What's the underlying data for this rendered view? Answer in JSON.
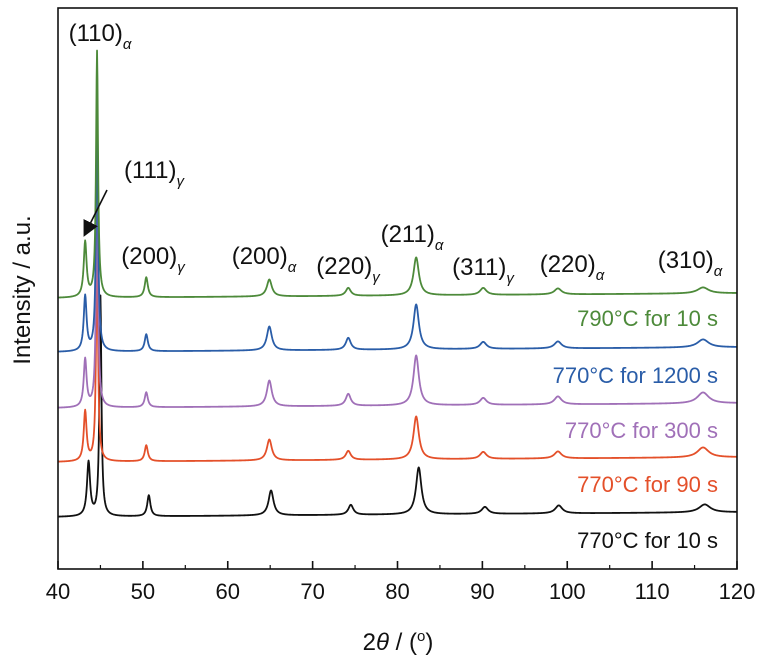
{
  "chart_data": {
    "type": "line",
    "title": "",
    "xlabel": {
      "prefix": "2",
      "symbol": "θ",
      "suffix": " / (",
      "unit": "o",
      "close": ")"
    },
    "ylabel": "Intensity / a.u.",
    "xlim": [
      40,
      120
    ],
    "xticks": [
      40,
      50,
      60,
      70,
      80,
      90,
      100,
      110,
      120
    ],
    "yticks": "none",
    "grid": false,
    "legend": "inline labels at right",
    "peak_labels": [
      {
        "name": "peak-110-alpha",
        "text": "(110)",
        "sub": "α",
        "x": 45.5
      },
      {
        "name": "peak-111-gamma",
        "text": "(111)",
        "sub": "γ",
        "x": 49.5
      },
      {
        "name": "peak-200-gamma",
        "text": "(200)",
        "sub": "γ",
        "x": 51.2
      },
      {
        "name": "peak-200-alpha",
        "text": "(200)",
        "sub": "α",
        "x": 65.2
      },
      {
        "name": "peak-220-gamma",
        "text": "(220)",
        "sub": "γ",
        "x": 74.7
      },
      {
        "name": "peak-211-alpha",
        "text": "(211)",
        "sub": "α",
        "x": 82.8
      },
      {
        "name": "peak-311-gamma",
        "text": "(311)",
        "sub": "γ",
        "x": 90.5
      },
      {
        "name": "peak-220-alpha",
        "text": "(220)",
        "sub": "α",
        "x": 99.2
      },
      {
        "name": "peak-310-alpha",
        "text": "(310)",
        "sub": "α",
        "x": 116.0
      }
    ],
    "series": [
      {
        "name": "770°C for 10 s",
        "color": "#111111",
        "offset": 0,
        "peaks": [
          {
            "x": 43.6,
            "h": 54,
            "w": 0.22
          },
          {
            "x": 45.0,
            "h": 220,
            "w": 0.14
          },
          {
            "x": 50.7,
            "h": 21,
            "w": 0.22
          },
          {
            "x": 65.1,
            "h": 25,
            "w": 0.35
          },
          {
            "x": 74.5,
            "h": 10,
            "w": 0.35
          },
          {
            "x": 82.5,
            "h": 47,
            "w": 0.38
          },
          {
            "x": 90.3,
            "h": 7,
            "w": 0.45
          },
          {
            "x": 99.0,
            "h": 8,
            "w": 0.5
          },
          {
            "x": 116.2,
            "h": 8,
            "w": 0.8
          }
        ]
      },
      {
        "name": "770°C for 90 s",
        "color": "#e4502a",
        "offset": 1,
        "peaks": [
          {
            "x": 43.2,
            "h": 50,
            "w": 0.2
          },
          {
            "x": 44.6,
            "h": 210,
            "w": 0.14
          },
          {
            "x": 50.4,
            "h": 16,
            "w": 0.22
          },
          {
            "x": 64.9,
            "h": 21,
            "w": 0.35
          },
          {
            "x": 74.2,
            "h": 9,
            "w": 0.35
          },
          {
            "x": 82.2,
            "h": 43,
            "w": 0.38
          },
          {
            "x": 90.1,
            "h": 7,
            "w": 0.45
          },
          {
            "x": 98.9,
            "h": 7,
            "w": 0.5
          },
          {
            "x": 116.0,
            "h": 10,
            "w": 0.8
          }
        ]
      },
      {
        "name": "770°C for 300 s",
        "color": "#a070b8",
        "offset": 2,
        "peaks": [
          {
            "x": 43.2,
            "h": 48,
            "w": 0.2
          },
          {
            "x": 44.6,
            "h": 230,
            "w": 0.14
          },
          {
            "x": 50.4,
            "h": 15,
            "w": 0.22
          },
          {
            "x": 64.9,
            "h": 26,
            "w": 0.35
          },
          {
            "x": 74.2,
            "h": 12,
            "w": 0.35
          },
          {
            "x": 82.2,
            "h": 50,
            "w": 0.38
          },
          {
            "x": 90.1,
            "h": 7,
            "w": 0.45
          },
          {
            "x": 98.9,
            "h": 8,
            "w": 0.5
          },
          {
            "x": 116.0,
            "h": 11,
            "w": 0.8
          }
        ]
      },
      {
        "name": "770°C for 1200 s",
        "color": "#2a5da8",
        "offset": 3,
        "peaks": [
          {
            "x": 43.2,
            "h": 55,
            "w": 0.2
          },
          {
            "x": 44.6,
            "h": 240,
            "w": 0.14
          },
          {
            "x": 50.4,
            "h": 17,
            "w": 0.22
          },
          {
            "x": 64.9,
            "h": 24,
            "w": 0.35
          },
          {
            "x": 74.2,
            "h": 12,
            "w": 0.35
          },
          {
            "x": 82.2,
            "h": 45,
            "w": 0.38
          },
          {
            "x": 90.1,
            "h": 7,
            "w": 0.45
          },
          {
            "x": 98.9,
            "h": 7,
            "w": 0.5
          },
          {
            "x": 116.0,
            "h": 8,
            "w": 0.8
          }
        ]
      },
      {
        "name": "790°C for 10 s",
        "color": "#4d8a3a",
        "offset": 4,
        "peaks": [
          {
            "x": 43.2,
            "h": 55,
            "w": 0.2
          },
          {
            "x": 44.6,
            "h": 246,
            "w": 0.14
          },
          {
            "x": 50.4,
            "h": 20,
            "w": 0.22
          },
          {
            "x": 64.9,
            "h": 17,
            "w": 0.35
          },
          {
            "x": 74.2,
            "h": 8,
            "w": 0.35
          },
          {
            "x": 82.2,
            "h": 38,
            "w": 0.38
          },
          {
            "x": 90.1,
            "h": 7,
            "w": 0.45
          },
          {
            "x": 98.9,
            "h": 6,
            "w": 0.5
          },
          {
            "x": 116.0,
            "h": 6,
            "w": 0.8
          }
        ]
      }
    ]
  }
}
